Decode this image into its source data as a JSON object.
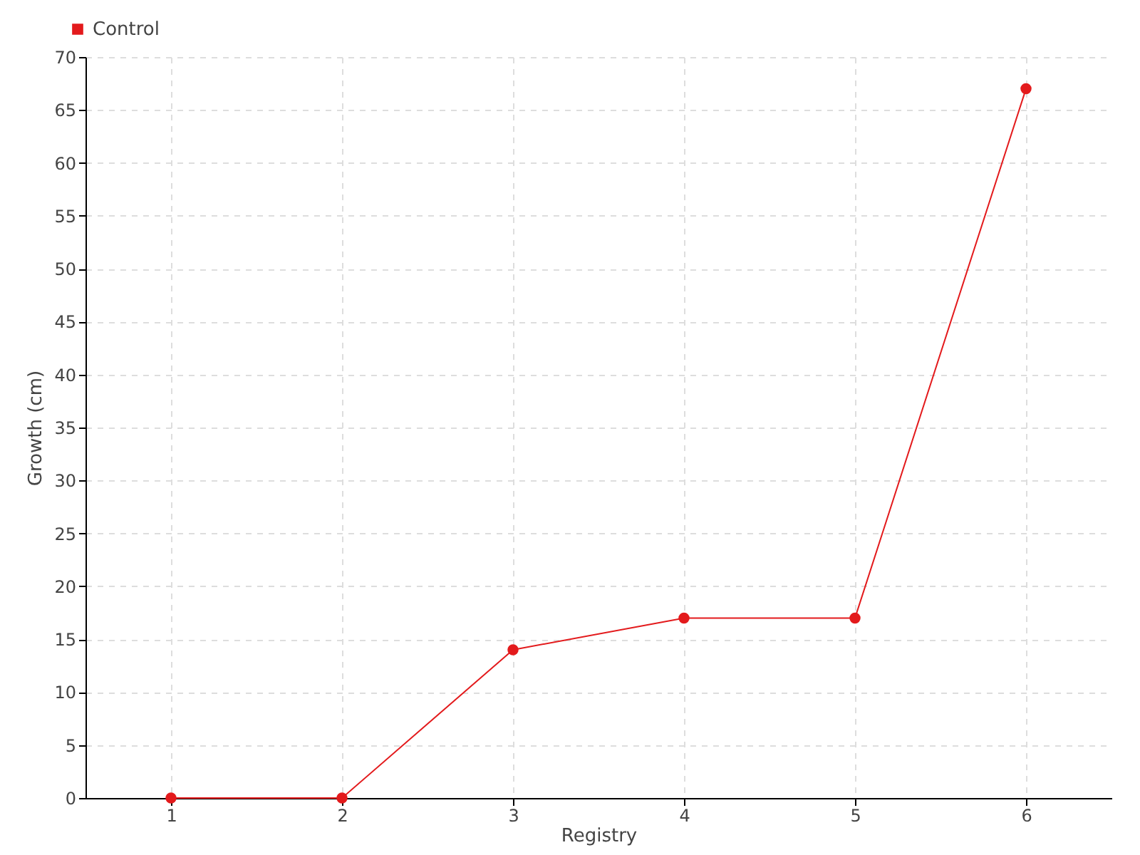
{
  "chart_data": {
    "type": "line",
    "xlabel": "Registry",
    "ylabel": "Growth (cm)",
    "categories": [
      "1",
      "2",
      "3",
      "4",
      "5",
      "6"
    ],
    "series": [
      {
        "name": "Control",
        "color": "#e31a1c",
        "values": [
          0,
          0,
          14,
          17,
          17,
          67
        ]
      }
    ],
    "ylim": [
      0,
      70
    ],
    "yticks": [
      0,
      5,
      10,
      15,
      20,
      25,
      30,
      35,
      40,
      45,
      50,
      55,
      60,
      65,
      70
    ],
    "grid": true,
    "legend": "top left",
    "marker": "circle",
    "line_style": "solid"
  }
}
